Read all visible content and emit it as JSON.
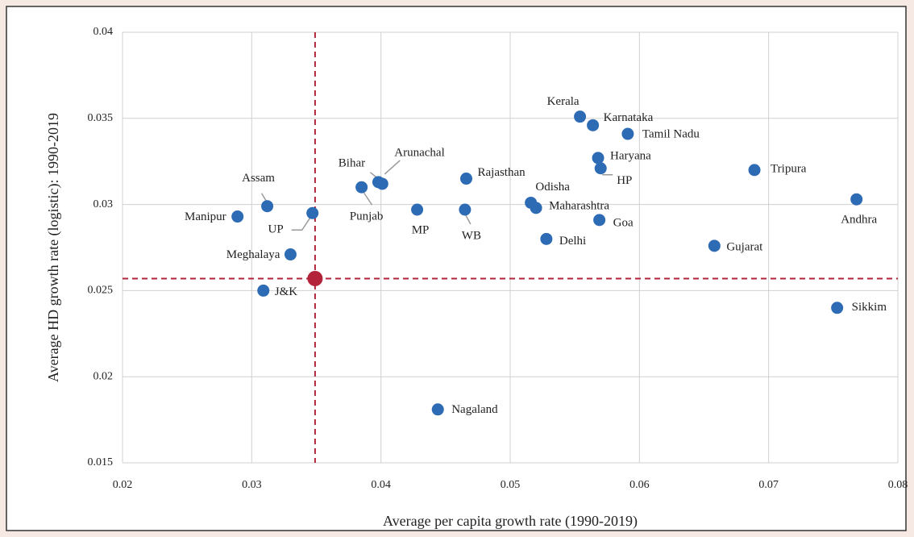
{
  "chart_data": {
    "type": "scatter",
    "xlabel": "Average per capita growth rate (1990-2019)",
    "ylabel": "Average HD growth rate (logistic): 1990-2019",
    "labels": [
      "Manipur",
      "Assam",
      "UP",
      "Meghalaya",
      "J&K",
      "Punjab",
      "Bihar",
      "Arunachal",
      "MP",
      "WB",
      "Rajasthan",
      "Odisha",
      "Maharashtra",
      "Delhi",
      "Kerala",
      "Karnataka",
      "Tamil Nadu",
      "Haryana",
      "HP",
      "Goa",
      "Tripura",
      "Andhra",
      "Gujarat",
      "Sikkim",
      "Nagaland"
    ],
    "x": [
      0.0289,
      0.0312,
      0.0347,
      0.033,
      0.0309,
      0.0385,
      0.0398,
      0.0401,
      0.0428,
      0.0465,
      0.0466,
      0.0516,
      0.052,
      0.0528,
      0.0554,
      0.0564,
      0.0591,
      0.0568,
      0.057,
      0.0569,
      0.0689,
      0.0768,
      0.0658,
      0.0753,
      0.0444
    ],
    "y": [
      0.0293,
      0.0299,
      0.0295,
      0.0271,
      0.025,
      0.031,
      0.0313,
      0.0312,
      0.0297,
      0.0297,
      0.0315,
      0.0301,
      0.0298,
      0.028,
      0.0351,
      0.0346,
      0.0341,
      0.0327,
      0.0321,
      0.0291,
      0.032,
      0.0303,
      0.0276,
      0.024,
      0.0181
    ],
    "color": "#2e6bb5",
    "reference": {
      "x": 0.0349,
      "y": 0.0257,
      "color": "#b3233a"
    },
    "xlim": [
      0.02,
      0.08
    ],
    "ylim": [
      0.015,
      0.04
    ],
    "xticks": [
      0.02,
      0.03,
      0.04,
      0.05,
      0.06,
      0.07,
      0.08
    ],
    "yticks": [
      0.015,
      0.02,
      0.025,
      0.03,
      0.035,
      0.04
    ],
    "grid": true
  }
}
